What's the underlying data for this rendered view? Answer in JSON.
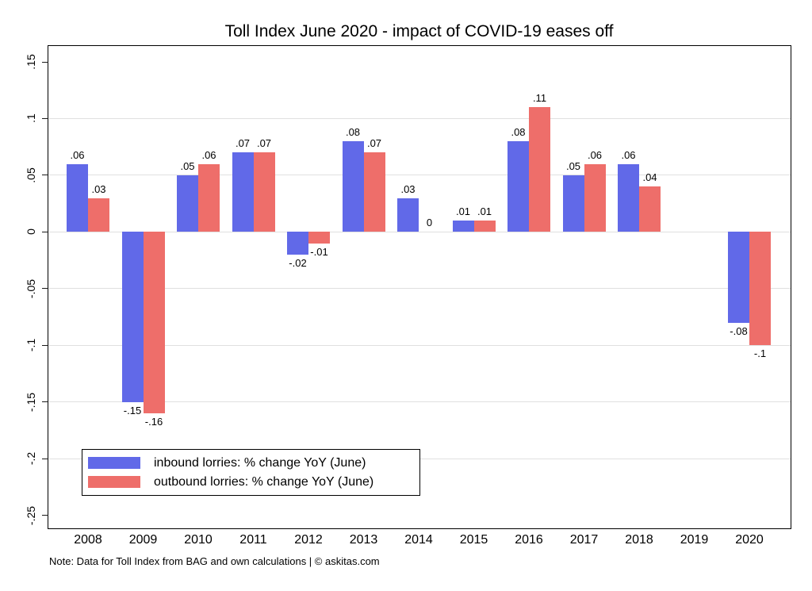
{
  "title": "Toll Index June 2020 - impact of COVID-19 eases off",
  "note": "Note: Data for Toll Index from BAG and own calculations | © askitas.com",
  "colors": {
    "inbound": "#6169e8",
    "outbound": "#ee6e6a",
    "gridline": "#e0e0e0",
    "axis": "#000000",
    "background": "#ffffff"
  },
  "legend": {
    "items": [
      {
        "label": "inbound lorries: % change YoY (June)",
        "color_key": "inbound"
      },
      {
        "label": "outbound lorries: % change YoY (June)",
        "color_key": "outbound"
      }
    ],
    "position": "lower-left"
  },
  "chart_data": {
    "type": "bar",
    "title": "Toll Index June 2020 - impact of COVID-19 eases off",
    "categories": [
      "2008",
      "2009",
      "2010",
      "2011",
      "2012",
      "2013",
      "2014",
      "2015",
      "2016",
      "2017",
      "2018",
      "2019",
      "2020"
    ],
    "series": [
      {
        "name": "inbound lorries: % change YoY (June)",
        "color": "#6169e8",
        "values": [
          0.06,
          -0.15,
          0.05,
          0.07,
          -0.02,
          0.08,
          0.03,
          0.01,
          0.08,
          0.05,
          0.06,
          null,
          -0.08
        ],
        "labels": [
          ".06",
          "-.15",
          ".05",
          ".07",
          "-.02",
          ".08",
          ".03",
          ".01",
          ".08",
          ".05",
          ".06",
          null,
          "-.08"
        ]
      },
      {
        "name": "outbound lorries: % change YoY (June)",
        "color": "#ee6e6a",
        "values": [
          0.03,
          -0.16,
          0.06,
          0.07,
          -0.01,
          0.07,
          0,
          0.01,
          0.11,
          0.06,
          0.04,
          null,
          -0.1
        ],
        "labels": [
          ".03",
          "-.16",
          ".06",
          ".07",
          "-.01",
          ".07",
          "0",
          ".01",
          ".11",
          ".06",
          ".04",
          null,
          "-.1"
        ]
      }
    ],
    "xlabel": "",
    "ylabel": "",
    "ylim": [
      -0.26,
      0.164
    ],
    "yticks": [
      0.15,
      0.1,
      0.05,
      0,
      -0.05,
      -0.1,
      -0.15,
      -0.2,
      -0.25
    ],
    "ytick_labels": [
      ".15",
      ".1",
      ".05",
      "0",
      "-.05",
      "-.1",
      "-.15",
      "-.2",
      "-.25"
    ],
    "grid_ticks": [
      0.1,
      0.05,
      0,
      -0.05,
      -0.1,
      -0.15,
      -0.2
    ],
    "grid": true,
    "legend_position": "lower-left"
  }
}
